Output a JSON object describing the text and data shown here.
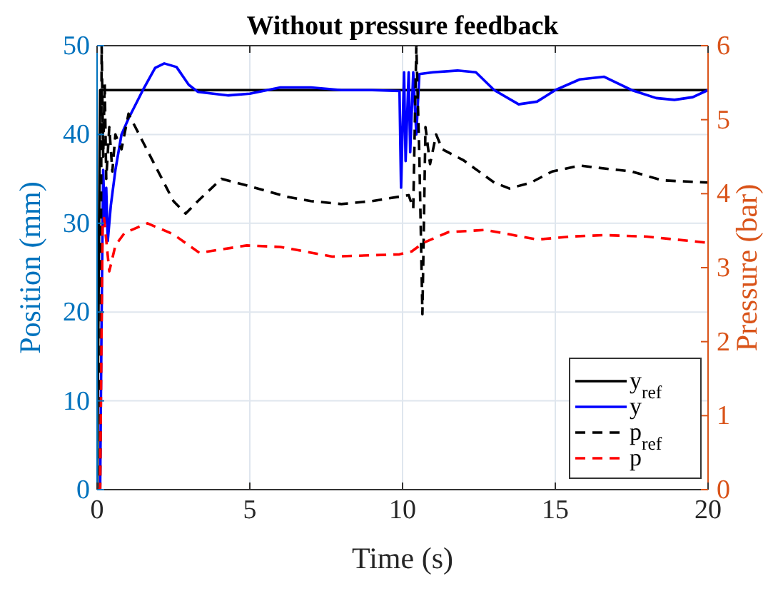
{
  "chart_data": {
    "type": "line",
    "title": "Without pressure feedback",
    "xlabel": "Time (s)",
    "ylabel": "Position (mm)",
    "y2label": "Pressure (bar)",
    "xlim": [
      0,
      20
    ],
    "xticks": [
      0,
      5,
      10,
      15,
      20
    ],
    "ylim": [
      0,
      50
    ],
    "yticks": [
      0,
      10,
      20,
      30,
      40,
      50
    ],
    "y2lim": [
      0,
      6
    ],
    "y2ticks": [
      0,
      1,
      2,
      3,
      4,
      5,
      6
    ],
    "grid": true,
    "legend": "bottom right",
    "series": [
      {
        "name": "y$_{ref}$",
        "color": "#000000",
        "line_style": "solid",
        "x": [
          0,
          0.1,
          20
        ],
        "values": [
          0,
          45,
          45
        ]
      },
      {
        "name": "y",
        "color": "#0000ff",
        "line_style": "solid",
        "x": [
          0,
          0.1,
          0.15,
          0.2,
          0.25,
          0.3,
          0.35,
          0.45,
          0.6,
          0.8,
          1.03,
          1.5,
          1.9,
          2.2,
          2.6,
          3.0,
          3.3,
          4.3,
          5,
          6,
          7,
          8,
          9,
          9.9,
          9.95,
          10.05,
          10.1,
          10.2,
          10.25,
          10.35,
          10.45,
          10.55,
          11,
          11.8,
          12.4,
          13,
          13.8,
          14.4,
          15,
          15.8,
          16.6,
          17.5,
          18.3,
          18.9,
          19.5,
          20
        ],
        "values": [
          0,
          0,
          20,
          36,
          30,
          34,
          28,
          32,
          36,
          40,
          41.8,
          45,
          47.5,
          48,
          47.6,
          45.6,
          44.8,
          44.4,
          44.6,
          45.3,
          45.3,
          45,
          45,
          44.9,
          34,
          47,
          37,
          47,
          38,
          47,
          40,
          46.8,
          47,
          47.2,
          47,
          45,
          43.4,
          43.7,
          45,
          46.2,
          46.5,
          45,
          44.1,
          43.9,
          44.2,
          45
        ]
      },
      {
        "name": "p$_{ref}$",
        "color": "#000000",
        "line_style": "dashed",
        "axis": "y2",
        "x": [
          0,
          0.1,
          0.15,
          0.2,
          0.25,
          0.3,
          0.4,
          0.5,
          0.6,
          0.8,
          1.03,
          1.5,
          2.0,
          2.5,
          2.9,
          3.3,
          4.07,
          5,
          6.2,
          7,
          8,
          9,
          10.2,
          10.35,
          10.45,
          10.55,
          10.65,
          10.75,
          10.9,
          11.1,
          11.3,
          12,
          13,
          13.5,
          14.2,
          14.9,
          15.8,
          16.6,
          17.5,
          18.5,
          20
        ],
        "values": [
          0,
          0,
          6,
          4.5,
          5.5,
          4.2,
          4.9,
          4.3,
          4.8,
          4.6,
          5.08,
          4.7,
          4.3,
          3.9,
          3.73,
          3.9,
          4.2,
          4.1,
          3.96,
          3.9,
          3.86,
          3.9,
          3.98,
          3.8,
          6,
          4.5,
          2.37,
          4.9,
          4.4,
          4.8,
          4.6,
          4.45,
          4.15,
          4.07,
          4.15,
          4.3,
          4.38,
          4.34,
          4.3,
          4.18,
          4.15
        ]
      },
      {
        "name": "p",
        "color": "#ff0000",
        "line_style": "dashed",
        "axis": "y2",
        "x": [
          0,
          0.1,
          0.18,
          0.23,
          0.4,
          0.6,
          0.9,
          1.65,
          2.5,
          3.35,
          4.9,
          6,
          7.7,
          9.9,
          10.3,
          10.7,
          11.5,
          12.7,
          13.5,
          14.4,
          15.5,
          16.6,
          18,
          19.9
        ],
        "values": [
          0,
          0,
          3.6,
          3.67,
          2.95,
          3.3,
          3.47,
          3.6,
          3.45,
          3.2,
          3.3,
          3.28,
          3.15,
          3.18,
          3.22,
          3.34,
          3.48,
          3.51,
          3.45,
          3.38,
          3.42,
          3.44,
          3.42,
          3.34
        ]
      }
    ]
  }
}
